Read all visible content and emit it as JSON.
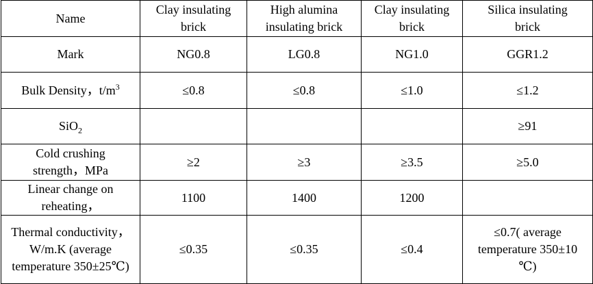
{
  "header": {
    "name": "Name",
    "col1": [
      "Clay insulating",
      "brick"
    ],
    "col2": [
      "High alumina",
      "insulating brick"
    ],
    "col3": [
      "Clay insulating",
      "brick"
    ],
    "col4": [
      "Silica insulating",
      "brick"
    ]
  },
  "rows": {
    "mark": {
      "label": "Mark",
      "values": [
        "NG0.8",
        "LG0.8",
        "NG1.0",
        "GGR1.2"
      ]
    },
    "bulk_density": {
      "label": "Bulk Density，t/m",
      "label_sup": "3",
      "values": [
        "≤0.8",
        "≤0.8",
        "≤1.0",
        "≤1.2"
      ]
    },
    "sio2": {
      "label": "SiO",
      "label_sub": "2",
      "values": [
        "",
        "",
        "",
        "≥91"
      ]
    },
    "cold_crushing": {
      "label_lines": [
        "Cold crushing",
        "strength，MPa"
      ],
      "values": [
        "≥2",
        "≥3",
        "≥3.5",
        "≥5.0"
      ]
    },
    "linear_change": {
      "label_lines": [
        "Linear change on",
        "reheating，"
      ],
      "values": [
        "1100",
        "1400",
        "1200",
        ""
      ]
    },
    "thermal_conductivity": {
      "label_lines": [
        "Thermal conductivity，",
        "W/m.K (average",
        "temperature 350±25℃)"
      ],
      "values": [
        "≤0.35",
        "≤0.35",
        "≤0.4"
      ],
      "last_lines": [
        "≤0.7( average",
        "temperature 350±10",
        "℃)"
      ]
    }
  }
}
